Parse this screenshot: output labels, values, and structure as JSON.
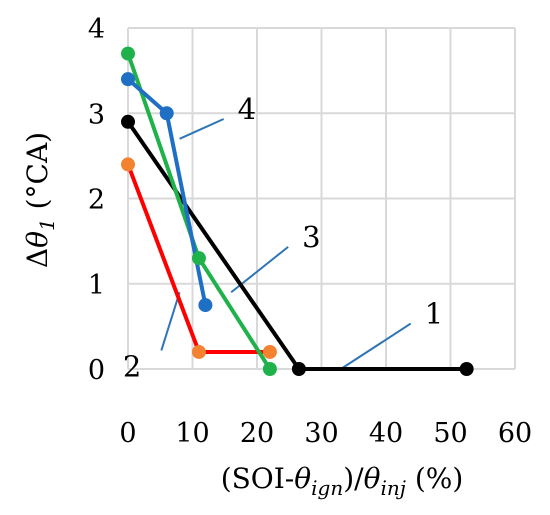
{
  "chart_data": {
    "type": "line",
    "title": "",
    "xlabel": {
      "pre": "(SOI-",
      "theta1": "θ",
      "sub1": "ign",
      "mid": ")/",
      "theta2": "θ",
      "sub2": "inj",
      "post": " (%)"
    },
    "ylabel": {
      "pre": "Δ",
      "theta": "θ",
      "sub": "1",
      "post": " (°CA)"
    },
    "xlim": [
      0,
      60
    ],
    "ylim": [
      0,
      4
    ],
    "x_ticks": [
      "0",
      "10",
      "20",
      "30",
      "40",
      "50",
      "60"
    ],
    "y_ticks": [
      "0",
      "1",
      "2",
      "3",
      "4"
    ],
    "grid": true,
    "legend": "none",
    "series": [
      {
        "color": "#000000",
        "x": [
          0,
          26.5,
          52.5
        ],
        "y": [
          2.9,
          0,
          0
        ]
      },
      {
        "color": "#ff0000",
        "marker_color": "#f58231",
        "x": [
          0,
          11,
          22
        ],
        "y": [
          2.4,
          0.2,
          0.2
        ]
      },
      {
        "color": "#1fb24a",
        "x": [
          0,
          11,
          22
        ],
        "y": [
          3.7,
          1.3,
          0
        ]
      },
      {
        "color": "#1f6fc4",
        "x": [
          0,
          6,
          12
        ],
        "y": [
          3.4,
          3.0,
          0.75
        ]
      }
    ],
    "annotations": [
      {
        "text": "1",
        "point": [
          33,
          0
        ],
        "label_at": [
          46,
          0.65
        ]
      },
      {
        "text": "2",
        "point": [
          8,
          0.9
        ],
        "label_at": [
          3,
          0.1
        ]
      },
      {
        "text": "3",
        "point": [
          16,
          0.9
        ],
        "label_at": [
          27,
          1.55
        ]
      },
      {
        "text": "4",
        "point": [
          8,
          2.7
        ],
        "label_at": [
          17,
          3.05
        ]
      }
    ],
    "leader_color": "#2e75b6"
  }
}
